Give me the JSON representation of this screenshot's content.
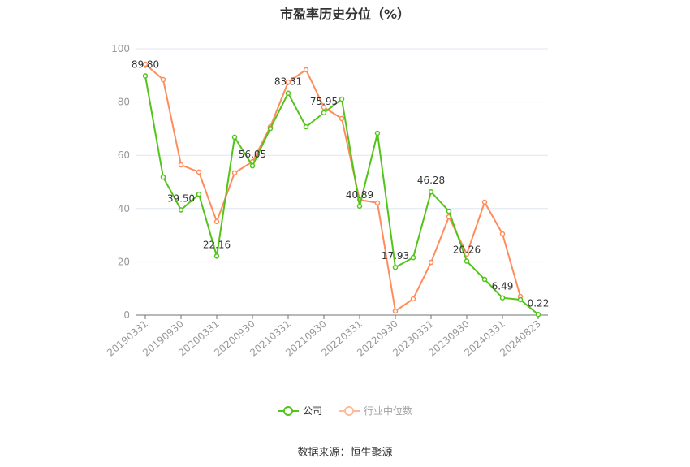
{
  "chart_data": {
    "type": "line",
    "title": "市盈率历史分位（%）",
    "x": [
      "20190331",
      "20190630",
      "20190930",
      "20191231",
      "20200331",
      "20200630",
      "20200930",
      "20201231",
      "20210331",
      "20210630",
      "20210930",
      "20211231",
      "20220331",
      "20220630",
      "20220930",
      "20221231",
      "20230331",
      "20230630",
      "20230930",
      "20231231",
      "20240331",
      "20240630",
      "20240823"
    ],
    "xtick_labels": [
      "20190331",
      "20190930",
      "20200331",
      "20200930",
      "20210331",
      "20210930",
      "20220331",
      "20220930",
      "20230331",
      "20230930",
      "20240331",
      "20240823"
    ],
    "ylim": [
      0,
      100
    ],
    "yticks": [
      0,
      20,
      40,
      60,
      80,
      100
    ],
    "grid": true,
    "legend_position": "bottom",
    "series": [
      {
        "name": "公司",
        "color": "#52c41a",
        "values": [
          89.8,
          51.8,
          39.5,
          45.4,
          22.16,
          66.8,
          56.05,
          70.1,
          83.31,
          70.7,
          75.95,
          81.1,
          40.89,
          68.3,
          17.93,
          21.6,
          46.28,
          39.0,
          20.26,
          13.4,
          6.49,
          5.8,
          0.22
        ],
        "data_labels": {
          "0": "89.80",
          "2": "39.50",
          "4": "22.16",
          "6": "56.05",
          "8": "83.31",
          "10": "75.95",
          "12": "40.89",
          "14": "17.93",
          "16": "46.28",
          "18": "20.26",
          "20": "6.49",
          "22": "0.22"
        }
      },
      {
        "name": "行业中位数",
        "color": "#ff8c5a",
        "values": [
          94.2,
          88.4,
          56.4,
          53.7,
          35.1,
          53.4,
          57.6,
          70.7,
          87.5,
          92.1,
          78.0,
          73.8,
          43.3,
          42.1,
          1.5,
          6.1,
          19.8,
          36.9,
          22.9,
          42.4,
          30.5,
          7.0,
          null
        ]
      }
    ]
  },
  "source": "数据来源：恒生聚源"
}
